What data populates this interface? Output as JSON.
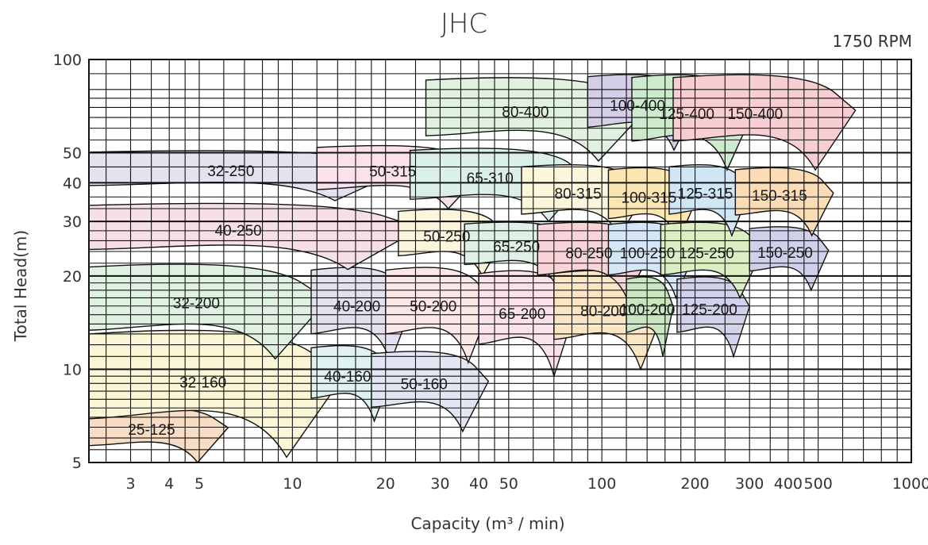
{
  "chart_data": {
    "type": "area",
    "title": "JHC",
    "annotation": "1750 RPM",
    "xlabel": "Capacity (m³ / min)",
    "ylabel": "Total Head(m)",
    "x_scale": "log",
    "y_scale": "log",
    "xlim": [
      2.2,
      1000
    ],
    "ylim": [
      5,
      100
    ],
    "x_ticks": [
      3,
      4,
      5,
      10,
      20,
      30,
      40,
      50,
      100,
      200,
      300,
      400,
      500,
      1000
    ],
    "y_ticks": [
      5,
      10,
      20,
      30,
      40,
      50,
      100
    ],
    "grid": true,
    "series": [
      {
        "name": "25-125",
        "color": "#f9dcc4",
        "q_range": [
          2.2,
          6.2
        ],
        "head_range": [
          5,
          7.6
        ]
      },
      {
        "name": "32-160",
        "color": "#fbf6d6",
        "q_range": [
          2.2,
          14.5
        ],
        "head_range": [
          5.2,
          13.5
        ]
      },
      {
        "name": "32-200",
        "color": "#dff2e2",
        "q_range": [
          2.2,
          13
        ],
        "head_range": [
          10.8,
          22
        ]
      },
      {
        "name": "32-250",
        "color": "#e2e2f0",
        "q_range": [
          2.2,
          23
        ],
        "head_range": [
          35,
          51
        ]
      },
      {
        "name": "40-160",
        "color": "#dff1f0",
        "q_range": [
          11.5,
          21
        ],
        "head_range": [
          6.8,
          12
        ]
      },
      {
        "name": "40-200",
        "color": "#e4e1ee",
        "q_range": [
          11.5,
          24.5
        ],
        "head_range": [
          10.5,
          21.5
        ]
      },
      {
        "name": "40-250",
        "color": "#f7dfe8",
        "q_range": [
          2.2,
          26
        ],
        "head_range": [
          21,
          34.5
        ]
      },
      {
        "name": "50-160",
        "color": "#e2e5f2",
        "q_range": [
          18,
          43
        ],
        "head_range": [
          6.3,
          11.5
        ]
      },
      {
        "name": "50-200",
        "color": "#fce7e7",
        "q_range": [
          20,
          44
        ],
        "head_range": [
          10.5,
          21.5
        ]
      },
      {
        "name": "50-250",
        "color": "#fbf5dc",
        "q_range": [
          22,
          49
        ],
        "head_range": [
          20,
          33
        ]
      },
      {
        "name": "50-315",
        "color": "#fae1eb",
        "q_range": [
          12,
          42
        ],
        "head_range": [
          33,
          53
        ]
      },
      {
        "name": "65-200",
        "color": "#fbe2ea",
        "q_range": [
          40,
          82
        ],
        "head_range": [
          9.5,
          21
        ]
      },
      {
        "name": "65-250",
        "color": "#dff0e6",
        "q_range": [
          36,
          85
        ],
        "head_range": [
          19,
          30
        ]
      },
      {
        "name": "65-310",
        "color": "#dcf0ea",
        "q_range": [
          24,
          90
        ],
        "head_range": [
          30,
          52
        ]
      },
      {
        "name": "80-200",
        "color": "#fbe6c4",
        "q_range": [
          70,
          160
        ],
        "head_range": [
          10,
          21
        ]
      },
      {
        "name": "80-250",
        "color": "#f8d3d8",
        "q_range": [
          62,
          145
        ],
        "head_range": [
          17,
          30
        ]
      },
      {
        "name": "80-315",
        "color": "#fcf6db",
        "q_range": [
          55,
          140
        ],
        "head_range": [
          27,
          46
        ]
      },
      {
        "name": "80-400",
        "color": "#e0f1e0",
        "q_range": [
          27,
          140
        ],
        "head_range": [
          47,
          88
        ]
      },
      {
        "name": "100-200",
        "color": "#c9e6c0",
        "q_range": [
          120,
          170
        ],
        "head_range": [
          11,
          20
        ]
      },
      {
        "name": "100-250",
        "color": "#d4e6f7",
        "q_range": [
          105,
          200
        ],
        "head_range": [
          17,
          30
        ]
      },
      {
        "name": "100-315",
        "color": "#fbe5b0",
        "q_range": [
          105,
          205
        ],
        "head_range": [
          26,
          45
        ]
      },
      {
        "name": "100-400",
        "color": "#d4cee9",
        "q_range": [
          90,
          205
        ],
        "head_range": [
          51,
          90
        ]
      },
      {
        "name": "125-200",
        "color": "#d2d2ea",
        "q_range": [
          175,
          300
        ],
        "head_range": [
          11,
          20
        ]
      },
      {
        "name": "125-250",
        "color": "#dcefc2",
        "q_range": [
          155,
          330
        ],
        "head_range": [
          17,
          30
        ]
      },
      {
        "name": "125-315",
        "color": "#d0e6f5",
        "q_range": [
          165,
          300
        ],
        "head_range": [
          27,
          46
        ]
      },
      {
        "name": "125-400",
        "color": "#cdeacd",
        "q_range": [
          125,
          310
        ],
        "head_range": [
          44,
          90
        ]
      },
      {
        "name": "150-250",
        "color": "#d1d0ea",
        "q_range": [
          300,
          540
        ],
        "head_range": [
          18,
          29
        ]
      },
      {
        "name": "150-315",
        "color": "#fbdcb4",
        "q_range": [
          270,
          560
        ],
        "head_range": [
          27,
          45
        ]
      },
      {
        "name": "150-400",
        "color": "#f7cfd2",
        "q_range": [
          170,
          660
        ],
        "head_range": [
          44,
          90
        ]
      }
    ]
  }
}
